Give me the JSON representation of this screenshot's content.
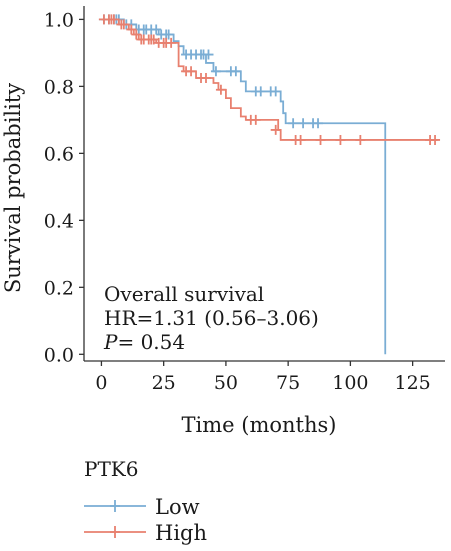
{
  "chart_data": {
    "type": "line",
    "subtype": "kaplan-meier",
    "xlabel": "Time (months)",
    "ylabel": "Survival probability",
    "xlim": [
      -7,
      138
    ],
    "ylim": [
      -0.02,
      1.04
    ],
    "x_ticks": [
      0,
      25,
      50,
      75,
      100,
      125
    ],
    "y_ticks": [
      0.0,
      0.2,
      0.4,
      0.6,
      0.8,
      1.0
    ],
    "x_tick_labels": [
      "0",
      "25",
      "50",
      "75",
      "100",
      "125"
    ],
    "y_tick_labels": [
      "0.0",
      "0.2",
      "0.4",
      "0.6",
      "0.8",
      "1.0"
    ],
    "grid": false,
    "legend_title": "PTK6",
    "legend_position": "bottom-left",
    "annotation": {
      "line1": "Overall survival",
      "line2": "HR=1.31 (0.56–3.06)",
      "p_label": "P",
      "p_value": "= 0.54"
    },
    "series": [
      {
        "name": "Low",
        "color": "#7aadd4",
        "steps": [
          [
            0,
            1.0
          ],
          [
            9,
            0.985
          ],
          [
            14,
            0.97
          ],
          [
            23,
            0.955
          ],
          [
            29,
            0.935
          ],
          [
            31,
            0.92
          ],
          [
            33,
            0.895
          ],
          [
            42,
            0.87
          ],
          [
            45,
            0.845
          ],
          [
            56,
            0.815
          ],
          [
            58,
            0.785
          ],
          [
            72,
            0.755
          ],
          [
            73,
            0.72
          ],
          [
            74,
            0.69
          ],
          [
            114,
            0.0
          ]
        ],
        "end_time": 114,
        "censored": [
          [
            1,
            1.0
          ],
          [
            3,
            1.0
          ],
          [
            5,
            1.0
          ],
          [
            6,
            1.0
          ],
          [
            7,
            1.0
          ],
          [
            10,
            0.985
          ],
          [
            12,
            0.985
          ],
          [
            15,
            0.97
          ],
          [
            17,
            0.97
          ],
          [
            18,
            0.97
          ],
          [
            20,
            0.97
          ],
          [
            22,
            0.97
          ],
          [
            24,
            0.955
          ],
          [
            26,
            0.955
          ],
          [
            27,
            0.955
          ],
          [
            34,
            0.895
          ],
          [
            36,
            0.895
          ],
          [
            38,
            0.895
          ],
          [
            40,
            0.895
          ],
          [
            41,
            0.895
          ],
          [
            43,
            0.895
          ],
          [
            46,
            0.845
          ],
          [
            52,
            0.845
          ],
          [
            54,
            0.845
          ],
          [
            62,
            0.785
          ],
          [
            64,
            0.785
          ],
          [
            68,
            0.785
          ],
          [
            70,
            0.785
          ],
          [
            77,
            0.69
          ],
          [
            81,
            0.69
          ],
          [
            85,
            0.69
          ],
          [
            87,
            0.69
          ]
        ]
      },
      {
        "name": "High",
        "color": "#e8806f",
        "steps": [
          [
            0,
            1.0
          ],
          [
            7,
            0.985
          ],
          [
            11,
            0.97
          ],
          [
            13,
            0.955
          ],
          [
            15,
            0.94
          ],
          [
            22,
            0.93
          ],
          [
            31,
            0.86
          ],
          [
            33,
            0.845
          ],
          [
            38,
            0.825
          ],
          [
            45,
            0.81
          ],
          [
            47,
            0.79
          ],
          [
            50,
            0.765
          ],
          [
            52,
            0.735
          ],
          [
            56,
            0.71
          ],
          [
            58,
            0.7
          ],
          [
            71,
            0.67
          ],
          [
            72,
            0.64
          ]
        ],
        "end_time": 135,
        "censored": [
          [
            1,
            1.0
          ],
          [
            3,
            1.0
          ],
          [
            4,
            1.0
          ],
          [
            5,
            1.0
          ],
          [
            8,
            0.985
          ],
          [
            9,
            0.985
          ],
          [
            12,
            0.97
          ],
          [
            14,
            0.955
          ],
          [
            16,
            0.94
          ],
          [
            17,
            0.94
          ],
          [
            19,
            0.94
          ],
          [
            20,
            0.94
          ],
          [
            21,
            0.94
          ],
          [
            23,
            0.93
          ],
          [
            25,
            0.93
          ],
          [
            26,
            0.93
          ],
          [
            28,
            0.93
          ],
          [
            34,
            0.845
          ],
          [
            36,
            0.845
          ],
          [
            40,
            0.825
          ],
          [
            42,
            0.825
          ],
          [
            48,
            0.79
          ],
          [
            60,
            0.7
          ],
          [
            62,
            0.7
          ],
          [
            70,
            0.67
          ],
          [
            78,
            0.64
          ],
          [
            80,
            0.64
          ],
          [
            88,
            0.64
          ],
          [
            96,
            0.64
          ],
          [
            104,
            0.64
          ],
          [
            132,
            0.64
          ],
          [
            134,
            0.64
          ]
        ]
      }
    ]
  }
}
